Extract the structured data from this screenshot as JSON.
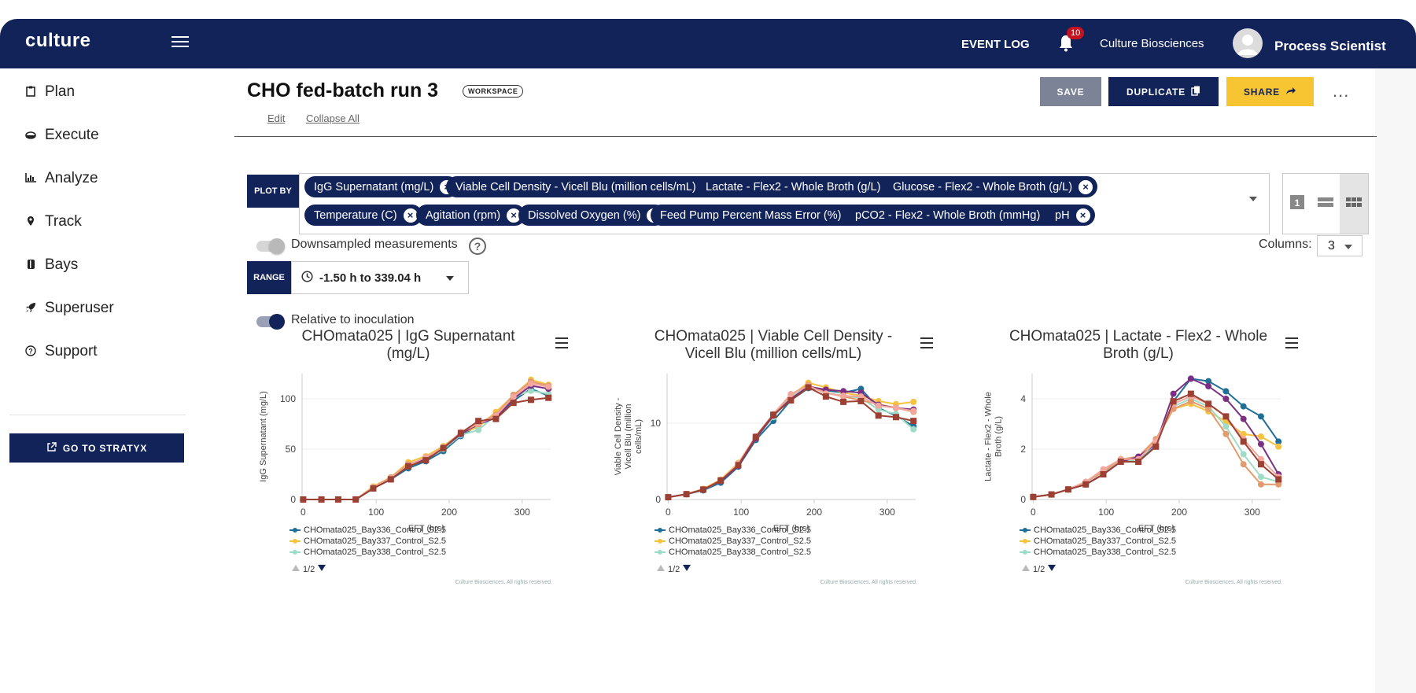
{
  "header": {
    "logo": "culture",
    "event_log": "EVENT LOG",
    "notification_count": "10",
    "org": "Culture Biosciences",
    "user": "Process Scientist"
  },
  "sidebar": {
    "items": [
      {
        "label": "Plan",
        "icon": "clipboard-icon"
      },
      {
        "label": "Execute",
        "icon": "disc-icon"
      },
      {
        "label": "Analyze",
        "icon": "bar-chart-icon"
      },
      {
        "label": "Track",
        "icon": "map-pin-icon"
      },
      {
        "label": "Bays",
        "icon": "bays-icon"
      },
      {
        "label": "Superuser",
        "icon": "rocket-icon"
      },
      {
        "label": "Support",
        "icon": "help-circle-icon"
      }
    ],
    "stratyx_label": "GO TO STRATYX"
  },
  "workspace": {
    "title": "CHO fed-batch run 3",
    "badge": "WORKSPACE",
    "edit": "Edit",
    "collapse_all": "Collapse All",
    "save": "SAVE",
    "duplicate": "DUPLICATE",
    "share": "SHARE",
    "more": "..."
  },
  "plot_by": {
    "label": "PLOT BY",
    "chips": [
      "IgG Supernatant (mg/L)",
      "Viable Cell Density - Vicell Blu (million cells/mL)",
      "Lactate - Flex2 - Whole Broth (g/L)",
      "Glucose - Flex2 - Whole Broth (g/L)",
      "Temperature (C)",
      "Agitation (rpm)",
      "Dissolved Oxygen (%)",
      "Feed Pump Percent Mass Error (%)",
      "pCO2 - Flex2 - Whole Broth (mmHg)",
      "pH"
    ]
  },
  "controls": {
    "downsampled_label": "Downsampled measurements",
    "downsampled_on": false,
    "columns_label": "Columns:",
    "columns_value": "3",
    "range_label": "RANGE",
    "range_value": "-1.50 h to 339.04 h",
    "relative_label": "Relative to inoculation",
    "relative_on": true
  },
  "legend_pager": "1/2",
  "credit": "Culture Biosciences. All rights reserved.",
  "colors": {
    "navy": "#12235a",
    "series": [
      "#1f6f98",
      "#f5c242",
      "#9fdcc6",
      "#e39a6c",
      "#7b2f82",
      "#f4a79c",
      "#9c4033"
    ]
  },
  "chart_data": [
    {
      "type": "line",
      "title": "CHOmata025 | IgG Supernatant (mg/L)",
      "xlabel": "EFT (hrs)",
      "ylabel": "IgG Supernatant (mg/L)",
      "xlim": [
        -1.5,
        339
      ],
      "ylim": [
        0,
        125
      ],
      "xticks": [
        0,
        100,
        200,
        300
      ],
      "yticks": [
        0,
        50,
        100
      ],
      "grid": true,
      "x": [
        0,
        25,
        48,
        72,
        96,
        120,
        144,
        168,
        192,
        216,
        240,
        264,
        288,
        312,
        336
      ],
      "series": [
        {
          "name": "CHOmata025_Bay336_Control_S2.5",
          "values": [
            0,
            0,
            0,
            0,
            11,
            20,
            31,
            38,
            48,
            63,
            74,
            82,
            98,
            110,
            103
          ]
        },
        {
          "name": "CHOmata025_Bay337_Control_S2.5",
          "values": [
            0,
            0,
            0,
            0,
            13,
            22,
            37,
            43,
            53,
            66,
            72,
            87,
            103,
            119,
            114
          ]
        },
        {
          "name": "CHOmata025_Bay338_Control_S2.5",
          "values": [
            0,
            0,
            0,
            0,
            12,
            21,
            33,
            40,
            50,
            64,
            69,
            84,
            102,
            108,
            105
          ]
        },
        {
          "name": "",
          "values": [
            0,
            0,
            0,
            0,
            12,
            22,
            35,
            41,
            52,
            66,
            76,
            84,
            104,
            117,
            113
          ]
        },
        {
          "name": "",
          "values": [
            0,
            0,
            0,
            0,
            11,
            20,
            34,
            40,
            51,
            65,
            75,
            81,
            100,
            113,
            110
          ]
        },
        {
          "name": "",
          "values": [
            0,
            0,
            0,
            0,
            12,
            21,
            34,
            42,
            51,
            67,
            75,
            83,
            102,
            115,
            112
          ]
        },
        {
          "name": "",
          "values": [
            0,
            0,
            0,
            0,
            11,
            20,
            33,
            39,
            51,
            66,
            78,
            80,
            96,
            99,
            101
          ]
        }
      ]
    },
    {
      "type": "line",
      "title": "CHOmata025 | Viable Cell Density - Vicell Blu (million cells/mL)",
      "xlabel": "EFT (hrs)",
      "ylabel": "Viable Cell Density - Vicell Blu (million cells/mL)",
      "xlim": [
        -1.5,
        339
      ],
      "ylim": [
        0,
        16.5
      ],
      "xticks": [
        0,
        100,
        200,
        300
      ],
      "yticks": [
        0,
        10
      ],
      "grid": true,
      "x": [
        0,
        25,
        48,
        72,
        96,
        120,
        144,
        168,
        192,
        216,
        240,
        264,
        288,
        312,
        336
      ],
      "series": [
        {
          "name": "CHOmata025_Bay336_Control_S2.5",
          "values": [
            0.3,
            0.7,
            1.2,
            2.2,
            4.3,
            7.8,
            10.3,
            13.0,
            14.6,
            14.3,
            14.0,
            14.5,
            12.0,
            11.0,
            9.6
          ]
        },
        {
          "name": "CHOmata025_Bay337_Control_S2.5",
          "values": [
            0.3,
            0.7,
            1.4,
            2.6,
            4.8,
            8.2,
            11.0,
            13.6,
            15.3,
            14.7,
            14.0,
            13.6,
            12.9,
            12.5,
            12.8
          ]
        },
        {
          "name": "CHOmata025_Bay338_Control_S2.5",
          "values": [
            0.3,
            0.7,
            1.3,
            2.4,
            4.5,
            8.0,
            10.8,
            13.4,
            14.9,
            14.0,
            13.6,
            13.3,
            11.8,
            11.2,
            9.2
          ]
        },
        {
          "name": "",
          "values": [
            0.3,
            0.7,
            1.3,
            2.5,
            4.6,
            8.1,
            11.0,
            13.8,
            15.0,
            14.0,
            13.5,
            13.0,
            12.5,
            12.0,
            11.5
          ]
        },
        {
          "name": "",
          "values": [
            0.3,
            0.7,
            1.3,
            2.4,
            4.4,
            8.0,
            11.0,
            13.2,
            14.8,
            14.4,
            14.2,
            14.0,
            12.4,
            12.0,
            11.8
          ]
        },
        {
          "name": "",
          "values": [
            0.3,
            0.7,
            1.3,
            2.5,
            4.7,
            8.3,
            11.2,
            13.8,
            14.9,
            13.9,
            13.6,
            13.5,
            12.3,
            12.0,
            11.6
          ]
        },
        {
          "name": "",
          "values": [
            0.3,
            0.7,
            1.3,
            2.5,
            4.5,
            8.2,
            11.1,
            13.0,
            14.7,
            13.5,
            12.8,
            12.9,
            11.0,
            10.8,
            10.3
          ]
        }
      ]
    },
    {
      "type": "line",
      "title": "CHOmata025 | Lactate - Flex2 - Whole Broth (g/L)",
      "xlabel": "EFT (hrs)",
      "ylabel": "Lactate - Flex2 - Whole Broth (g/L)",
      "xlim": [
        -1.5,
        339
      ],
      "ylim": [
        0,
        5
      ],
      "xticks": [
        0,
        100,
        200,
        300
      ],
      "yticks": [
        0,
        2,
        4
      ],
      "grid": true,
      "x": [
        0,
        25,
        48,
        72,
        96,
        120,
        144,
        168,
        192,
        216,
        240,
        264,
        288,
        312,
        336
      ],
      "series": [
        {
          "name": "CHOmata025_Bay336_Control_S2.5",
          "values": [
            0.1,
            0.2,
            0.4,
            0.6,
            1.0,
            1.5,
            1.6,
            2.1,
            3.9,
            4.8,
            4.7,
            4.3,
            3.7,
            3.3,
            2.3
          ]
        },
        {
          "name": "CHOmata025_Bay337_Control_S2.5",
          "values": [
            0.1,
            0.2,
            0.4,
            0.7,
            1.1,
            1.6,
            1.7,
            2.3,
            3.6,
            3.8,
            3.5,
            3.1,
            2.6,
            2.5,
            2.1
          ]
        },
        {
          "name": "CHOmata025_Bay338_Control_S2.5",
          "values": [
            0.1,
            0.2,
            0.4,
            0.7,
            1.1,
            1.5,
            1.6,
            2.2,
            3.7,
            4.0,
            3.7,
            2.9,
            1.8,
            0.9,
            0.7
          ]
        },
        {
          "name": "",
          "values": [
            0.1,
            0.2,
            0.4,
            0.7,
            1.1,
            1.6,
            1.7,
            2.4,
            3.6,
            3.9,
            3.6,
            2.6,
            1.4,
            0.6,
            0.6
          ]
        },
        {
          "name": "",
          "values": [
            0.1,
            0.2,
            0.4,
            0.6,
            1.0,
            1.5,
            1.7,
            2.2,
            4.2,
            4.8,
            4.5,
            4.0,
            3.2,
            2.2,
            1.0
          ]
        },
        {
          "name": "",
          "values": [
            0.1,
            0.2,
            0.4,
            0.7,
            1.2,
            1.6,
            1.6,
            2.3,
            3.8,
            4.1,
            3.8,
            3.3,
            2.4,
            1.6,
            0.9
          ]
        },
        {
          "name": "",
          "values": [
            0.1,
            0.2,
            0.4,
            0.6,
            1.0,
            1.5,
            1.5,
            2.1,
            3.9,
            4.2,
            3.8,
            3.3,
            2.3,
            1.4,
            0.8
          ]
        }
      ]
    }
  ]
}
